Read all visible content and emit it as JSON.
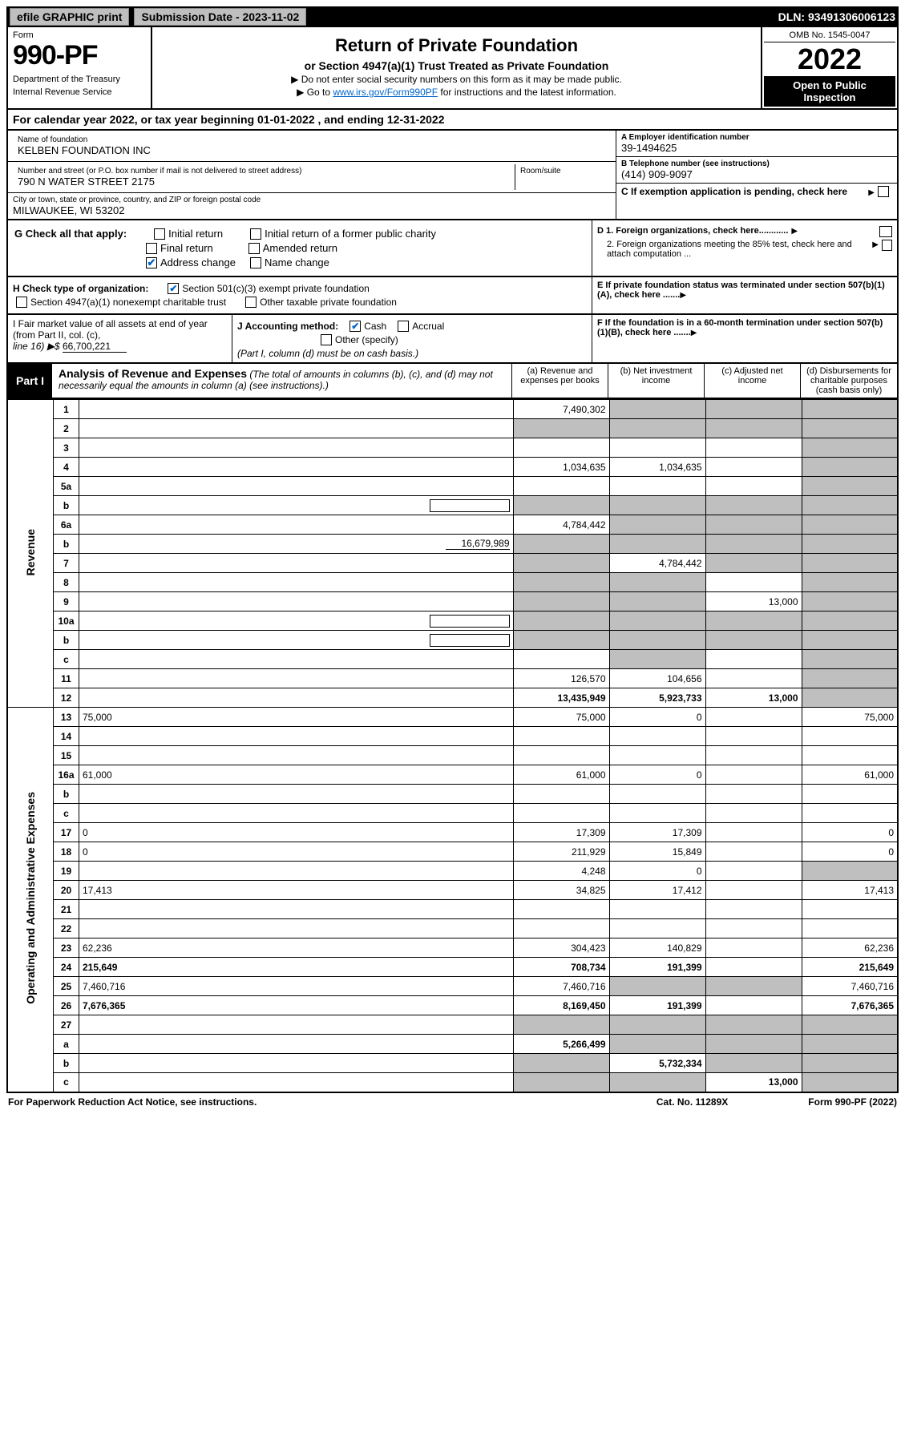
{
  "top": {
    "efile": "efile GRAPHIC print",
    "submission": "Submission Date - 2023-11-02",
    "dln": "DLN: 93491306006123"
  },
  "header": {
    "form_label": "Form",
    "form_number": "990-PF",
    "dept1": "Department of the Treasury",
    "dept2": "Internal Revenue Service",
    "title": "Return of Private Foundation",
    "subtitle": "or Section 4947(a)(1) Trust Treated as Private Foundation",
    "note1": "▶ Do not enter social security numbers on this form as it may be made public.",
    "note2_pre": "▶ Go to ",
    "note2_link": "www.irs.gov/Form990PF",
    "note2_post": " for instructions and the latest information.",
    "omb": "OMB No. 1545-0047",
    "year": "2022",
    "open": "Open to Public Inspection"
  },
  "cal_year": {
    "text_pre": "For calendar year 2022, or tax year beginning ",
    "begin": "01-01-2022",
    "text_mid": " , and ending ",
    "end": "12-31-2022"
  },
  "name_block": {
    "name_lbl": "Name of foundation",
    "name_val": "KELBEN FOUNDATION INC",
    "addr_lbl": "Number and street (or P.O. box number if mail is not delivered to street address)",
    "addr_val": "790 N WATER STREET 2175",
    "room_lbl": "Room/suite",
    "city_lbl": "City or town, state or province, country, and ZIP or foreign postal code",
    "city_val": "MILWAUKEE, WI  53202"
  },
  "right_block": {
    "a_lbl": "A Employer identification number",
    "a_val": "39-1494625",
    "b_lbl": "B Telephone number (see instructions)",
    "b_val": "(414) 909-9097",
    "c_lbl": "C If exemption application is pending, check here"
  },
  "g_section": {
    "lbl": "G Check all that apply:",
    "opts": [
      "Initial return",
      "Initial return of a former public charity",
      "Final return",
      "Amended return",
      "Address change",
      "Name change"
    ],
    "checked": "Address change"
  },
  "h_section": {
    "lbl": "H Check type of organization:",
    "opt1": "Section 501(c)(3) exempt private foundation",
    "opt2": "Section 4947(a)(1) nonexempt charitable trust",
    "opt3": "Other taxable private foundation"
  },
  "d_section": {
    "d1": "D 1. Foreign organizations, check here............",
    "d2": "2. Foreign organizations meeting the 85% test, check here and attach computation ...",
    "e": "E  If private foundation status was terminated under section 507(b)(1)(A), check here .......",
    "f": "F  If the foundation is in a 60-month termination under section 507(b)(1)(B), check here ......."
  },
  "i_section": {
    "i_lbl": "I Fair market value of all assets at end of year (from Part II, col. (c),",
    "i_line": "line 16) ▶$",
    "i_val": "66,700,221",
    "j_lbl": "J Accounting method:",
    "j_cash": "Cash",
    "j_accrual": "Accrual",
    "j_other": "Other (specify)",
    "j_note": "(Part I, column (d) must be on cash basis.)"
  },
  "part1": {
    "label": "Part I",
    "title": "Analysis of Revenue and Expenses",
    "title_note": "(The total of amounts in columns (b), (c), and (d) may not necessarily equal the amounts in column (a) (see instructions).)",
    "col_a": "(a) Revenue and expenses per books",
    "col_b": "(b) Net investment income",
    "col_c": "(c) Adjusted net income",
    "col_d": "(d) Disbursements for charitable purposes (cash basis only)"
  },
  "side_labels": {
    "revenue": "Revenue",
    "expenses": "Operating and Administrative Expenses"
  },
  "rows": [
    {
      "n": "1",
      "d": "",
      "a": "7,490,302",
      "b": "",
      "c": "",
      "b_grey": true,
      "c_grey": true,
      "d_grey": true
    },
    {
      "n": "2",
      "d": "",
      "a": "",
      "b": "",
      "c": "",
      "a_grey": true,
      "b_grey": true,
      "c_grey": true,
      "d_grey": true
    },
    {
      "n": "3",
      "d": "",
      "a": "",
      "b": "",
      "c": "",
      "d_grey": true
    },
    {
      "n": "4",
      "d": "",
      "a": "1,034,635",
      "b": "1,034,635",
      "c": "",
      "d_grey": true
    },
    {
      "n": "5a",
      "d": "",
      "a": "",
      "b": "",
      "c": "",
      "d_grey": true
    },
    {
      "n": "b",
      "d": "",
      "a": "",
      "b": "",
      "c": "",
      "a_grey": true,
      "b_grey": true,
      "c_grey": true,
      "d_grey": true,
      "inline_box": true
    },
    {
      "n": "6a",
      "d": "",
      "a": "4,784,442",
      "b": "",
      "c": "",
      "b_grey": true,
      "c_grey": true,
      "d_grey": true
    },
    {
      "n": "b",
      "d": "",
      "a": "",
      "b": "",
      "c": "",
      "inline_val": "16,679,989",
      "a_grey": true,
      "b_grey": true,
      "c_grey": true,
      "d_grey": true
    },
    {
      "n": "7",
      "d": "",
      "a": "",
      "b": "4,784,442",
      "c": "",
      "a_grey": true,
      "c_grey": true,
      "d_grey": true
    },
    {
      "n": "8",
      "d": "",
      "a": "",
      "b": "",
      "c": "",
      "a_grey": true,
      "b_grey": true,
      "d_grey": true
    },
    {
      "n": "9",
      "d": "",
      "a": "",
      "b": "",
      "c": "13,000",
      "a_grey": true,
      "b_grey": true,
      "d_grey": true
    },
    {
      "n": "10a",
      "d": "",
      "a": "",
      "b": "",
      "c": "",
      "a_grey": true,
      "b_grey": true,
      "c_grey": true,
      "d_grey": true,
      "inline_box": true
    },
    {
      "n": "b",
      "d": "",
      "a": "",
      "b": "",
      "c": "",
      "a_grey": true,
      "b_grey": true,
      "c_grey": true,
      "d_grey": true,
      "inline_box": true
    },
    {
      "n": "c",
      "d": "",
      "a": "",
      "b": "",
      "c": "",
      "b_grey": true,
      "d_grey": true
    },
    {
      "n": "11",
      "d": "",
      "a": "126,570",
      "b": "104,656",
      "c": "",
      "d_grey": true
    },
    {
      "n": "12",
      "d": "",
      "a": "13,435,949",
      "b": "5,923,733",
      "c": "13,000",
      "bold": true,
      "d_grey": true
    },
    {
      "n": "13",
      "d": "75,000",
      "a": "75,000",
      "b": "0",
      "c": ""
    },
    {
      "n": "14",
      "d": "",
      "a": "",
      "b": "",
      "c": ""
    },
    {
      "n": "15",
      "d": "",
      "a": "",
      "b": "",
      "c": ""
    },
    {
      "n": "16a",
      "d": "61,000",
      "a": "61,000",
      "b": "0",
      "c": ""
    },
    {
      "n": "b",
      "d": "",
      "a": "",
      "b": "",
      "c": ""
    },
    {
      "n": "c",
      "d": "",
      "a": "",
      "b": "",
      "c": ""
    },
    {
      "n": "17",
      "d": "0",
      "a": "17,309",
      "b": "17,309",
      "c": ""
    },
    {
      "n": "18",
      "d": "0",
      "a": "211,929",
      "b": "15,849",
      "c": ""
    },
    {
      "n": "19",
      "d": "",
      "a": "4,248",
      "b": "0",
      "c": "",
      "d_grey": true
    },
    {
      "n": "20",
      "d": "17,413",
      "a": "34,825",
      "b": "17,412",
      "c": ""
    },
    {
      "n": "21",
      "d": "",
      "a": "",
      "b": "",
      "c": ""
    },
    {
      "n": "22",
      "d": "",
      "a": "",
      "b": "",
      "c": ""
    },
    {
      "n": "23",
      "d": "62,236",
      "a": "304,423",
      "b": "140,829",
      "c": ""
    },
    {
      "n": "24",
      "d": "215,649",
      "a": "708,734",
      "b": "191,399",
      "c": "",
      "bold": true
    },
    {
      "n": "25",
      "d": "7,460,716",
      "a": "7,460,716",
      "b": "",
      "c": "",
      "b_grey": true,
      "c_grey": true
    },
    {
      "n": "26",
      "d": "7,676,365",
      "a": "8,169,450",
      "b": "191,399",
      "c": "",
      "bold": true
    },
    {
      "n": "27",
      "d": "",
      "a": "",
      "b": "",
      "c": "",
      "a_grey": true,
      "b_grey": true,
      "c_grey": true,
      "d_grey": true
    },
    {
      "n": "a",
      "d": "",
      "a": "5,266,499",
      "b": "",
      "c": "",
      "bold": true,
      "b_grey": true,
      "c_grey": true,
      "d_grey": true
    },
    {
      "n": "b",
      "d": "",
      "a": "",
      "b": "5,732,334",
      "c": "",
      "bold": true,
      "a_grey": true,
      "c_grey": true,
      "d_grey": true
    },
    {
      "n": "c",
      "d": "",
      "a": "",
      "b": "",
      "c": "13,000",
      "bold": true,
      "a_grey": true,
      "b_grey": true,
      "d_grey": true
    }
  ],
  "footer": {
    "left": "For Paperwork Reduction Act Notice, see instructions.",
    "mid": "Cat. No. 11289X",
    "right": "Form 990-PF (2022)"
  },
  "colors": {
    "grey": "#bfbfbf",
    "link": "#0066cc"
  }
}
